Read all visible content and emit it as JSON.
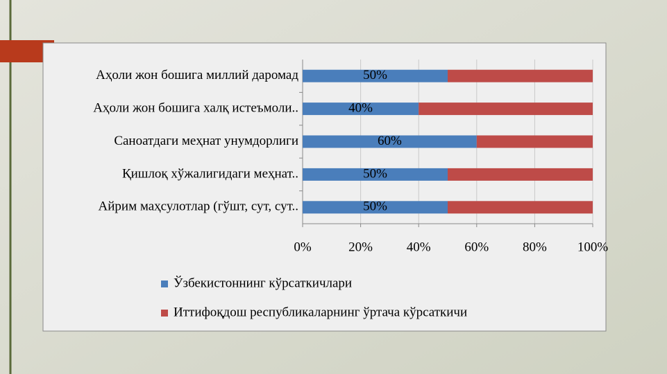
{
  "chart_data": {
    "type": "stacked-bar-horizontal",
    "categories": [
      "Аҳоли жон бошига миллий даромад",
      "Аҳоли жон бошига халқ истеъмоли..",
      "Саноатдаги меҳнат унумдорлиги",
      "Қишлоқ хўжалигидаги меҳнат..",
      "Айрим маҳсулотлар (гўшт, сут, сут.."
    ],
    "series": [
      {
        "name": "Ўзбекистоннинг кўрсаткичлари",
        "color": "#4a7ebb",
        "values": [
          50,
          40,
          60,
          50,
          50
        ],
        "value_labels": [
          "50%",
          "40%",
          "60%",
          "50%",
          "50%"
        ]
      },
      {
        "name": "Иттифоқдош республикаларнинг ўртача кўрсаткичи",
        "color": "#be4b48",
        "values": [
          50,
          60,
          40,
          50,
          50
        ]
      }
    ],
    "xlim": [
      0,
      100
    ],
    "xticks": [
      {
        "value": 0,
        "label": "0%"
      },
      {
        "value": 20,
        "label": "20%"
      },
      {
        "value": 40,
        "label": "40%"
      },
      {
        "value": 60,
        "label": "60%"
      },
      {
        "value": 80,
        "label": "80%"
      },
      {
        "value": 100,
        "label": "100%"
      }
    ],
    "grid": true,
    "legend": "bottom"
  }
}
